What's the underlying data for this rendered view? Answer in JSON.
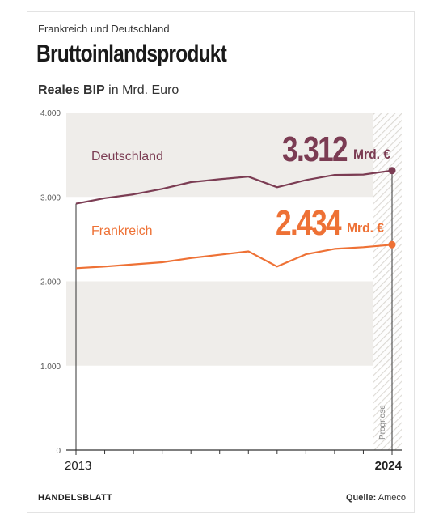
{
  "kicker": "Frankreich und Deutschland",
  "title": "Bruttoinlandsprodukt",
  "subtitle_bold": "Reales BIP",
  "subtitle_rest": " in Mrd. Euro",
  "footer_source_label": "HANDELSBLATT",
  "footer_quelle_label": "Quelle:",
  "footer_quelle_value": "Ameco",
  "colors": {
    "germany": "#7b3c53",
    "france": "#ee7135",
    "band": "#efedea",
    "axis": "#333333"
  },
  "chart_data": {
    "type": "line",
    "x": [
      2013,
      2014,
      2015,
      2016,
      2017,
      2018,
      2019,
      2020,
      2021,
      2022,
      2023,
      2024
    ],
    "x_tick_labels": [
      "2013",
      "2024"
    ],
    "y_ticks": [
      "0",
      "1.000",
      "2.000",
      "3.000",
      "4.000"
    ],
    "ylim": [
      0,
      4000
    ],
    "forecast_label": "Prognose",
    "forecast_from": 2023,
    "series": [
      {
        "name": "Deutschland",
        "values": [
          2920,
          2985,
          3030,
          3095,
          3175,
          3210,
          3240,
          3115,
          3200,
          3260,
          3265,
          3312
        ],
        "end_label_value": "3.312",
        "end_label_unit": "Mrd. €"
      },
      {
        "name": "Frankreich",
        "values": [
          2155,
          2175,
          2200,
          2225,
          2275,
          2315,
          2355,
          2175,
          2320,
          2385,
          2405,
          2434
        ],
        "end_label_value": "2.434",
        "end_label_unit": "Mrd. €"
      }
    ]
  }
}
